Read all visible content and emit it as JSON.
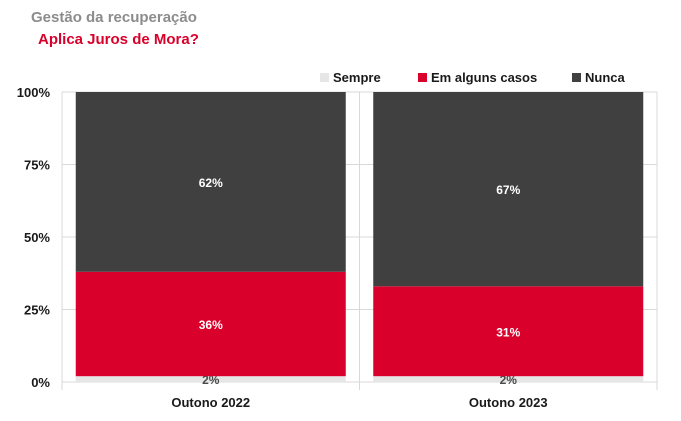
{
  "header": {
    "title": "Gestão da recuperação",
    "subtitle": "Aplica Juros de Mora?"
  },
  "chart_data": {
    "type": "bar",
    "stacked": true,
    "orientation": "vertical",
    "categories": [
      "Outono 2022",
      "Outono 2023"
    ],
    "series": [
      {
        "name": "Sempre",
        "values": [
          2,
          2
        ],
        "color": "#e6e6e6",
        "labels": [
          "2%",
          "2%"
        ],
        "label_color": "#4a4a4a"
      },
      {
        "name": "Em alguns casos",
        "values": [
          36,
          31
        ],
        "color": "#d9002b",
        "labels": [
          "36%",
          "31%"
        ],
        "label_color": "#ffffff"
      },
      {
        "name": "Nunca",
        "values": [
          62,
          67
        ],
        "color": "#404040",
        "labels": [
          "62%",
          "67%"
        ],
        "label_color": "#ffffff"
      }
    ],
    "ylim": [
      0,
      100
    ],
    "yticks": [
      "0%",
      "25%",
      "50%",
      "75%",
      "100%"
    ],
    "grid": true,
    "legend_position": "top-right"
  }
}
